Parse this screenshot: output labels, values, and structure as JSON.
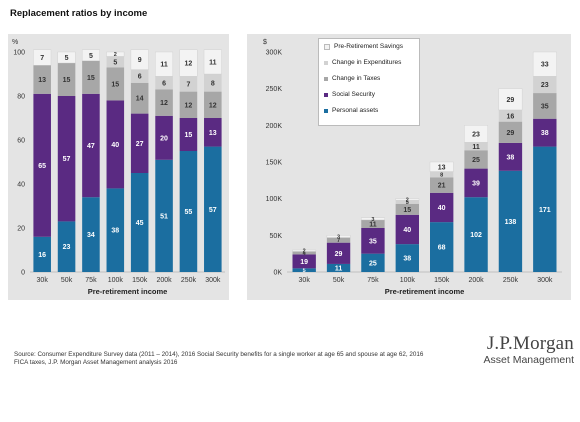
{
  "page": {
    "title": "Replacement ratios by income",
    "footnote_line1": "Source: Consumer Expenditure Survey data (2011 – 2014), 2016 Social Security benefits for a single worker at age 65 and spouse at age 62, 2016",
    "footnote_line2": "FICA taxes, J.P. Morgan Asset Management analysis 2016",
    "brand_name": "J.P.Morgan",
    "brand_sub": "Asset Management"
  },
  "colors": {
    "personal_assets": "#1b6ea0",
    "social_security": "#5a2a82",
    "change_in_taxes": "#a7a7a7",
    "change_in_expenditures": "#d2d2d2",
    "pre_retirement_savings": "#f3f3f3",
    "panel_bg": "#e4e4e4"
  },
  "chart_data": [
    {
      "type": "bar",
      "stacked": true,
      "unit_label": "%",
      "xlabel": "Pre-retirement income",
      "ylim": [
        0,
        100
      ],
      "yticks": [
        0,
        20,
        40,
        60,
        80,
        100
      ],
      "categories": [
        "30k",
        "50k",
        "75k",
        "100k",
        "150k",
        "200k",
        "250k",
        "300k"
      ],
      "series": [
        {
          "key": "personal_assets",
          "values": [
            16,
            23,
            34,
            38,
            45,
            51,
            55,
            57
          ]
        },
        {
          "key": "social_security",
          "values": [
            65,
            57,
            47,
            40,
            27,
            20,
            15,
            13
          ]
        },
        {
          "key": "change_in_taxes",
          "values": [
            13,
            15,
            15,
            15,
            14,
            12,
            12,
            12
          ]
        },
        {
          "key": "change_in_expenditures",
          "values": [
            0,
            0,
            0,
            5,
            6,
            6,
            7,
            8
          ]
        },
        {
          "key": "pre_retirement_savings",
          "values": [
            7,
            5,
            5,
            2,
            9,
            11,
            12,
            11
          ]
        }
      ]
    },
    {
      "type": "bar",
      "stacked": true,
      "unit_label": "$",
      "xlabel": "Pre-retirement income",
      "ylim": [
        0,
        300
      ],
      "yticks": [
        0,
        50,
        100,
        150,
        200,
        250,
        300
      ],
      "ytick_labels": [
        "0K",
        "50K",
        "100K",
        "150K",
        "200K",
        "250K",
        "300K"
      ],
      "categories": [
        "30k",
        "50k",
        "75k",
        "100k",
        "150k",
        "200k",
        "250k",
        "300k"
      ],
      "series": [
        {
          "name": "Personal assets",
          "key": "personal_assets",
          "values": [
            5,
            11,
            25,
            38,
            68,
            102,
            138,
            171
          ]
        },
        {
          "name": "Social Security",
          "key": "social_security",
          "values": [
            19,
            29,
            35,
            40,
            40,
            39,
            38,
            38
          ]
        },
        {
          "name": "Change in Taxes",
          "key": "change_in_taxes",
          "values": [
            4,
            7,
            11,
            15,
            21,
            25,
            29,
            35
          ]
        },
        {
          "name": "Change in Expenditures",
          "key": "change_in_expenditures",
          "values": [
            0,
            0,
            0,
            5,
            8,
            11,
            16,
            23
          ]
        },
        {
          "name": "Pre-Retirement Savings",
          "key": "pre_retirement_savings",
          "values": [
            2,
            3,
            3,
            2,
            13,
            23,
            29,
            33
          ]
        }
      ],
      "legend": {
        "placement": "top-left",
        "items": [
          "Pre-Retirement Savings",
          "Change in Expenditures",
          "Change in Taxes",
          "Social Security",
          "Personal assets"
        ]
      }
    }
  ]
}
